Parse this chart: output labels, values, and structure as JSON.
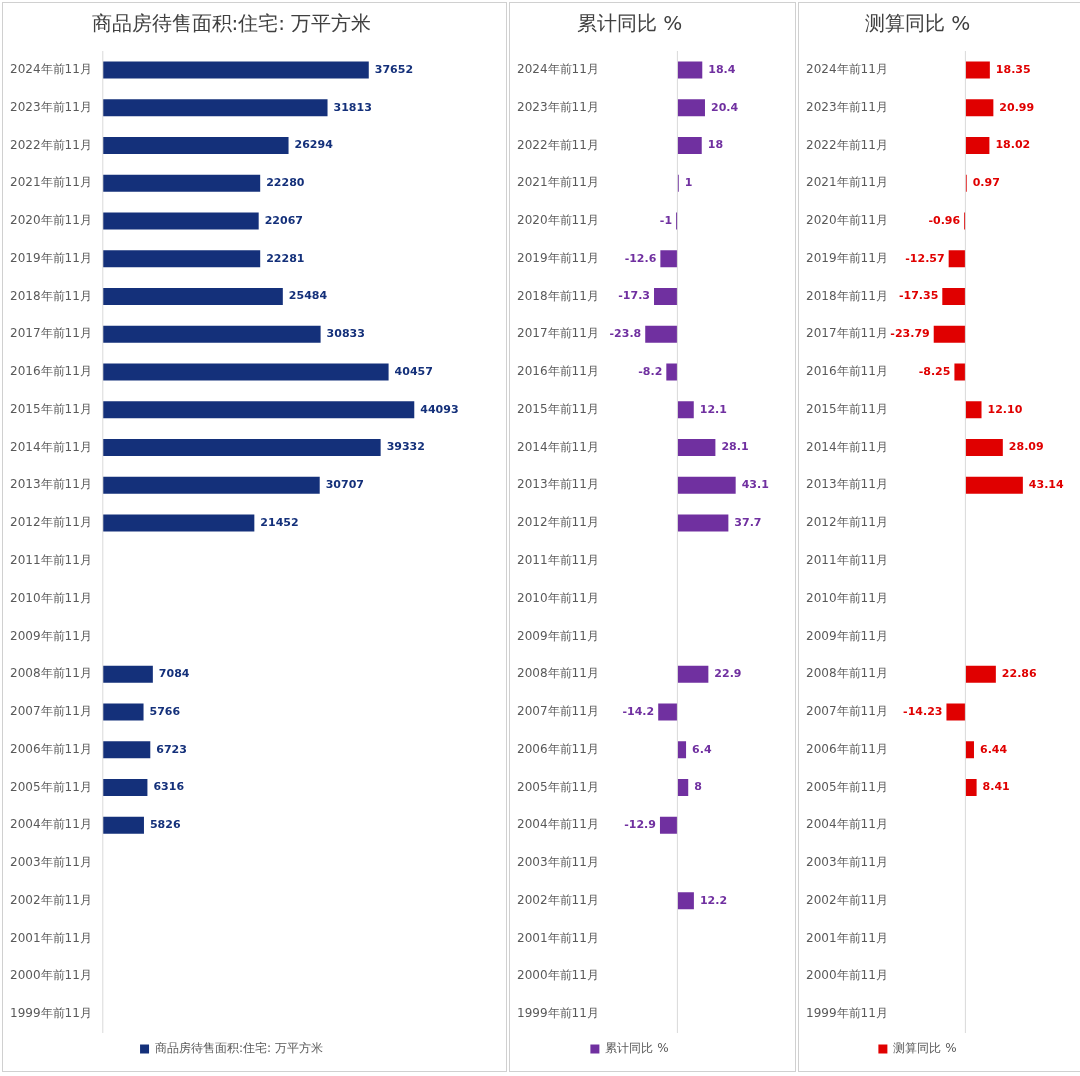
{
  "chart_data": [
    {
      "type": "bar",
      "orientation": "horizontal",
      "title": "商品房待售面积:住宅: 万平方米",
      "categories": [
        "2024年前11月",
        "2023年前11月",
        "2022年前11月",
        "2021年前11月",
        "2020年前11月",
        "2019年前11月",
        "2018年前11月",
        "2017年前11月",
        "2016年前11月",
        "2015年前11月",
        "2014年前11月",
        "2013年前11月",
        "2012年前11月",
        "2011年前11月",
        "2010年前11月",
        "2009年前11月",
        "2008年前11月",
        "2007年前11月",
        "2006年前11月",
        "2005年前11月",
        "2004年前11月",
        "2003年前11月",
        "2002年前11月",
        "2001年前11月",
        "2000年前11月",
        "1999年前11月"
      ],
      "series": [
        {
          "name": "商品房待售面积:住宅: 万平方米",
          "color": "#14307a",
          "values": [
            37652,
            31813,
            26294,
            22280,
            22067,
            22281,
            25484,
            30833,
            40457,
            44093,
            39332,
            30707,
            21452,
            null,
            null,
            null,
            7084,
            5766,
            6723,
            6316,
            5826,
            null,
            null,
            null,
            null,
            null
          ]
        }
      ],
      "tick_labels": "y",
      "data_labels": true,
      "legend": "bottom"
    },
    {
      "type": "bar",
      "orientation": "horizontal",
      "title": "累计同比 %",
      "categories": [
        "2024年前11月",
        "2023年前11月",
        "2022年前11月",
        "2021年前11月",
        "2020年前11月",
        "2019年前11月",
        "2018年前11月",
        "2017年前11月",
        "2016年前11月",
        "2015年前11月",
        "2014年前11月",
        "2013年前11月",
        "2012年前11月",
        "2011年前11月",
        "2010年前11月",
        "2009年前11月",
        "2008年前11月",
        "2007年前11月",
        "2006年前11月",
        "2005年前11月",
        "2004年前11月",
        "2003年前11月",
        "2002年前11月",
        "2001年前11月",
        "2000年前11月",
        "1999年前11月"
      ],
      "series": [
        {
          "name": "累计同比 %",
          "color": "#7030a0",
          "values": [
            18.4,
            20.4,
            18,
            1,
            -1,
            -12.6,
            -17.3,
            -23.8,
            -8.2,
            12.1,
            28.1,
            43.1,
            37.7,
            null,
            null,
            null,
            22.9,
            -14.2,
            6.4,
            8,
            -12.9,
            null,
            12.2,
            null,
            null,
            null
          ]
        }
      ],
      "tick_labels": "y",
      "data_labels": true,
      "legend": "bottom"
    },
    {
      "type": "bar",
      "orientation": "horizontal",
      "title": "测算同比 %",
      "categories": [
        "2024年前11月",
        "2023年前11月",
        "2022年前11月",
        "2021年前11月",
        "2020年前11月",
        "2019年前11月",
        "2018年前11月",
        "2017年前11月",
        "2016年前11月",
        "2015年前11月",
        "2014年前11月",
        "2013年前11月",
        "2012年前11月",
        "2011年前11月",
        "2010年前11月",
        "2009年前11月",
        "2008年前11月",
        "2007年前11月",
        "2006年前11月",
        "2005年前11月",
        "2004年前11月",
        "2003年前11月",
        "2002年前11月",
        "2001年前11月",
        "2000年前11月",
        "1999年前11月"
      ],
      "series": [
        {
          "name": "测算同比 %",
          "color": "#e00000",
          "values": [
            18.35,
            20.99,
            18.02,
            0.97,
            -0.96,
            -12.57,
            -17.35,
            -23.79,
            -8.25,
            12.1,
            28.09,
            43.14,
            null,
            null,
            null,
            null,
            22.86,
            -14.23,
            6.44,
            8.41,
            null,
            null,
            null,
            null,
            null,
            null
          ],
          "value_labels": [
            "18.35",
            "20.99",
            "18.02",
            "0.97",
            "-0.96",
            "-12.57",
            "-17.35",
            "-23.79",
            "-8.25",
            "12.10",
            "28.09",
            "43.14",
            null,
            null,
            null,
            null,
            "22.86",
            "-14.23",
            "6.44",
            "8.41",
            null,
            null,
            null,
            null,
            null,
            null
          ]
        }
      ],
      "tick_labels": "y",
      "legend": "bottom"
    }
  ]
}
